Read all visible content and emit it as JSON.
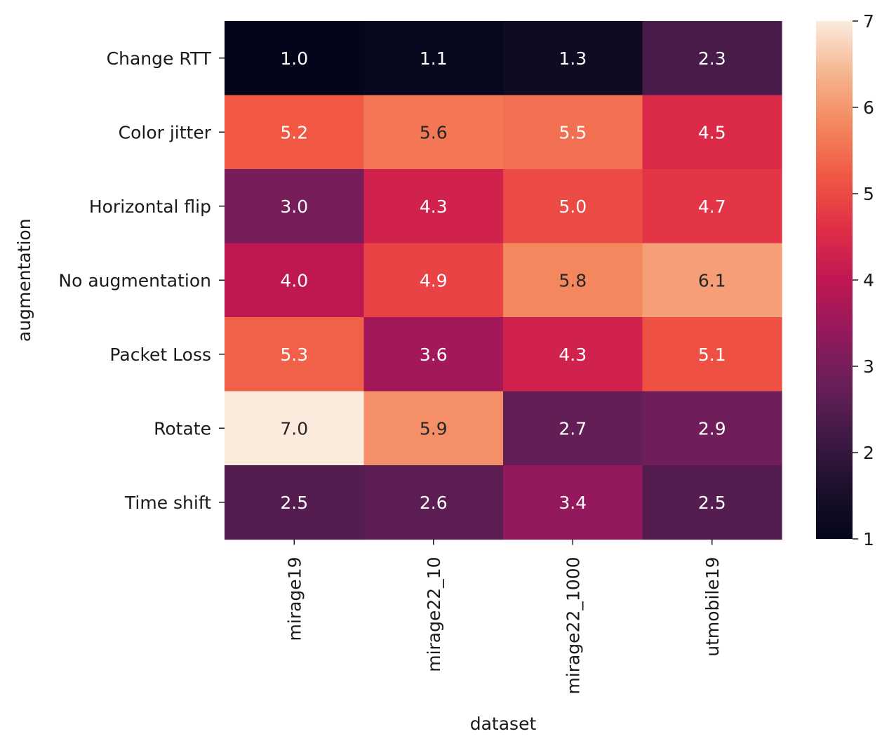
{
  "chart_data": {
    "type": "heatmap",
    "title": "",
    "xlabel": "dataset",
    "ylabel": "augmentation",
    "x_categories": [
      "mirage19",
      "mirage22_10",
      "mirage22_1000",
      "utmobile19"
    ],
    "y_categories": [
      "Change RTT",
      "Color jitter",
      "Horizontal flip",
      "No augmentation",
      "Packet Loss",
      "Rotate",
      "Time shift"
    ],
    "values": [
      [
        1.0,
        1.1,
        1.3,
        2.3
      ],
      [
        5.2,
        5.6,
        5.5,
        4.5
      ],
      [
        3.0,
        4.3,
        5.0,
        4.7
      ],
      [
        4.0,
        4.9,
        5.8,
        6.1
      ],
      [
        5.3,
        3.6,
        4.3,
        5.1
      ],
      [
        7.0,
        5.9,
        2.7,
        2.9
      ],
      [
        2.5,
        2.6,
        3.4,
        2.5
      ]
    ],
    "value_format": "0.0",
    "annotated": true,
    "colormap": "rocket",
    "colorbar": {
      "range": [
        1,
        7
      ],
      "ticks": [
        "1",
        "2",
        "3",
        "4",
        "5",
        "6",
        "7"
      ],
      "position": "right"
    },
    "grid": false
  }
}
